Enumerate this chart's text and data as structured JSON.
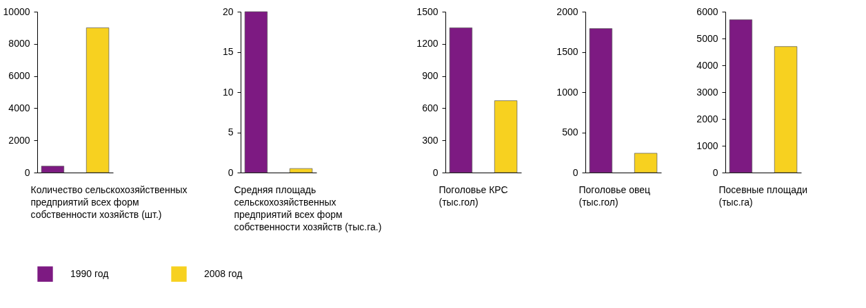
{
  "chart_data": [
    {
      "type": "bar",
      "categories": [
        null
      ],
      "xlabel": "Количество сельскохозяйственных\n предприятий всех форм\nсобственности хозяйств  (шт.)",
      "ylim": [
        0,
        10000
      ],
      "yticks": [
        0,
        2000,
        4000,
        6000,
        8000,
        10000
      ],
      "legend": "bottom",
      "series": [
        {
          "name": "1990 год",
          "color": "#7d1a82",
          "values": [
            400
          ]
        },
        {
          "name": "2008 год",
          "color": "#f7d120",
          "values": [
            9000
          ]
        }
      ]
    },
    {
      "type": "bar",
      "categories": [
        null
      ],
      "xlabel": "Средняя площадь\nсельскохозяйственных\n предприятий всех форм\nсобственности хозяйств (тыс.га.)",
      "ylim": [
        0,
        20
      ],
      "yticks": [
        0,
        5,
        10,
        15,
        20
      ],
      "series": [
        {
          "color": "#7d1a82",
          "values": [
            20
          ]
        },
        {
          "color": "#f7d120",
          "values": [
            0.5
          ]
        }
      ]
    },
    {
      "type": "bar",
      "categories": [
        null
      ],
      "xlabel": "Поголовье КРС\n(тыс.гол)",
      "ylim": [
        0,
        1500
      ],
      "yticks": [
        0,
        300,
        600,
        900,
        1200,
        1500
      ],
      "series": [
        {
          "color": "#7d1a82",
          "values": [
            1350
          ]
        },
        {
          "color": "#f7d120",
          "values": [
            670
          ]
        }
      ]
    },
    {
      "type": "bar",
      "categories": [
        null
      ],
      "xlabel": "Поголовье овец\n(тыс.гол)",
      "ylim": [
        0,
        2000
      ],
      "yticks": [
        0,
        500,
        1000,
        1500,
        2000
      ],
      "series": [
        {
          "color": "#7d1a82",
          "values": [
            1790
          ]
        },
        {
          "color": "#f7d120",
          "values": [
            240
          ]
        }
      ]
    },
    {
      "type": "bar",
      "categories": [
        null
      ],
      "xlabel": "Посевные площади\n(тыс.га)",
      "ylim": [
        0,
        6000
      ],
      "yticks": [
        0,
        1000,
        2000,
        3000,
        4000,
        5000,
        6000
      ],
      "series": [
        {
          "color": "#7d1a82",
          "values": [
            5700
          ]
        },
        {
          "color": "#f7d120",
          "values": [
            4700
          ]
        }
      ]
    }
  ]
}
